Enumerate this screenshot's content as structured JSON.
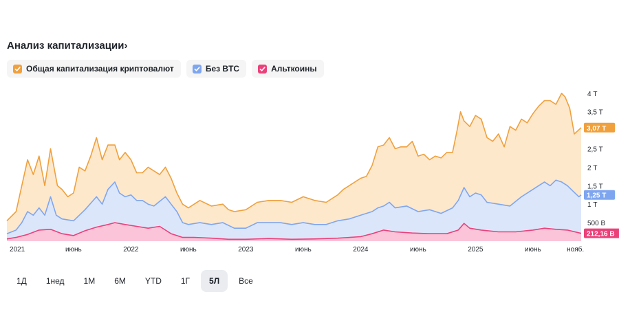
{
  "header": {
    "title": "Анализ капитализации›"
  },
  "legend": [
    {
      "label": "Общая капитализация криптовалют",
      "color": "#f0a03c",
      "icon": "check-icon"
    },
    {
      "label": "Без BTC",
      "color": "#7ea6f0",
      "icon": "check-icon"
    },
    {
      "label": "Альткоины",
      "color": "#ec407a",
      "icon": "check-icon"
    }
  ],
  "time_ranges": [
    "1Д",
    "1нед",
    "1М",
    "6М",
    "YTD",
    "1Г",
    "5Л",
    "Все"
  ],
  "active_range": "5Л",
  "chart_data": {
    "type": "area",
    "x_tick_labels": [
      "2021",
      "июнь",
      "2022",
      "июнь",
      "2023",
      "июнь",
      "2024",
      "июнь",
      "2025",
      "июнь",
      "нояб."
    ],
    "y_tick_labels": [
      "500 В",
      "1 Т",
      "1,5 Т",
      "2 Т",
      "2,5 Т",
      "3,5 Т",
      "4 Т"
    ],
    "y_ticks": [
      0.5,
      1,
      1.5,
      2,
      2.5,
      3.5,
      4
    ],
    "ylim": [
      0,
      4.2
    ],
    "xlim": [
      2020.92,
      2025.92
    ],
    "series": [
      {
        "name": "Общая капитализация криптовалют",
        "color": "#f0a03c",
        "fill": "#fde8cc",
        "last_label": "3,07 Т",
        "last_value": 3.07,
        "x": [
          2020.92,
          2021.0,
          2021.05,
          2021.1,
          2021.15,
          2021.2,
          2021.25,
          2021.3,
          2021.33,
          2021.36,
          2021.4,
          2021.45,
          2021.5,
          2021.55,
          2021.6,
          2021.65,
          2021.7,
          2021.75,
          2021.8,
          2021.86,
          2021.9,
          2021.95,
          2022.0,
          2022.05,
          2022.1,
          2022.15,
          2022.2,
          2022.25,
          2022.3,
          2022.35,
          2022.4,
          2022.45,
          2022.5,
          2022.6,
          2022.7,
          2022.8,
          2022.85,
          2022.9,
          2023.0,
          2023.1,
          2023.2,
          2023.3,
          2023.4,
          2023.5,
          2023.6,
          2023.7,
          2023.8,
          2023.85,
          2023.9,
          2024.0,
          2024.05,
          2024.1,
          2024.15,
          2024.2,
          2024.25,
          2024.3,
          2024.35,
          2024.4,
          2024.45,
          2024.5,
          2024.55,
          2024.6,
          2024.65,
          2024.7,
          2024.75,
          2024.8,
          2024.84,
          2024.87,
          2024.9,
          2024.95,
          2025.0,
          2025.05,
          2025.1,
          2025.15,
          2025.2,
          2025.25,
          2025.3,
          2025.35,
          2025.4,
          2025.45,
          2025.5,
          2025.55,
          2025.6,
          2025.65,
          2025.7,
          2025.75,
          2025.78,
          2025.82,
          2025.86,
          2025.92
        ],
        "values": [
          0.55,
          0.8,
          1.5,
          2.2,
          1.8,
          2.3,
          1.5,
          2.5,
          2.0,
          1.5,
          1.4,
          1.2,
          1.3,
          2.0,
          1.9,
          2.3,
          2.8,
          2.2,
          2.6,
          2.6,
          2.2,
          2.4,
          2.2,
          1.85,
          1.85,
          2.0,
          1.9,
          1.8,
          2.0,
          1.7,
          1.3,
          1.0,
          0.9,
          1.1,
          0.95,
          1.0,
          0.85,
          0.8,
          0.85,
          1.05,
          1.1,
          1.1,
          1.05,
          1.2,
          1.1,
          1.05,
          1.25,
          1.4,
          1.5,
          1.7,
          1.75,
          2.05,
          2.55,
          2.6,
          2.8,
          2.5,
          2.55,
          2.55,
          2.7,
          2.3,
          2.35,
          2.2,
          2.3,
          2.25,
          2.4,
          2.4,
          3.0,
          3.5,
          3.25,
          3.1,
          3.4,
          3.3,
          2.8,
          2.7,
          2.9,
          2.55,
          3.1,
          3.0,
          3.3,
          3.2,
          3.45,
          3.65,
          3.8,
          3.8,
          3.7,
          4.0,
          3.9,
          3.6,
          2.9,
          3.07
        ]
      },
      {
        "name": "Без BTC",
        "color": "#7ea6f0",
        "fill": "#dce6fb",
        "last_label": "1,25 Т",
        "last_value": 1.25,
        "x": [
          2020.92,
          2021.0,
          2021.05,
          2021.1,
          2021.15,
          2021.2,
          2021.25,
          2021.3,
          2021.35,
          2021.4,
          2021.5,
          2021.6,
          2021.7,
          2021.75,
          2021.8,
          2021.86,
          2021.9,
          2021.95,
          2022.0,
          2022.05,
          2022.1,
          2022.15,
          2022.2,
          2022.3,
          2022.35,
          2022.4,
          2022.45,
          2022.5,
          2022.6,
          2022.7,
          2022.8,
          2022.9,
          2023.0,
          2023.1,
          2023.2,
          2023.3,
          2023.4,
          2023.5,
          2023.6,
          2023.7,
          2023.8,
          2023.9,
          2024.0,
          2024.1,
          2024.15,
          2024.2,
          2024.25,
          2024.3,
          2024.4,
          2024.5,
          2024.6,
          2024.7,
          2024.8,
          2024.85,
          2024.9,
          2024.95,
          2025.0,
          2025.05,
          2025.1,
          2025.2,
          2025.3,
          2025.4,
          2025.5,
          2025.55,
          2025.6,
          2025.65,
          2025.7,
          2025.75,
          2025.8,
          2025.85,
          2025.9,
          2025.92
        ],
        "values": [
          0.2,
          0.3,
          0.5,
          0.8,
          0.7,
          0.9,
          0.7,
          1.2,
          0.7,
          0.6,
          0.55,
          0.85,
          1.2,
          1.0,
          1.4,
          1.6,
          1.3,
          1.2,
          1.25,
          1.1,
          1.1,
          1.0,
          0.95,
          1.2,
          1.0,
          0.8,
          0.5,
          0.45,
          0.5,
          0.45,
          0.5,
          0.35,
          0.35,
          0.5,
          0.5,
          0.5,
          0.45,
          0.5,
          0.45,
          0.45,
          0.55,
          0.6,
          0.7,
          0.8,
          0.9,
          0.95,
          1.05,
          0.9,
          0.95,
          0.8,
          0.85,
          0.75,
          0.9,
          1.1,
          1.45,
          1.2,
          1.3,
          1.25,
          1.05,
          1.0,
          0.95,
          1.2,
          1.4,
          1.5,
          1.6,
          1.5,
          1.65,
          1.6,
          1.5,
          1.35,
          1.2,
          1.25
        ]
      },
      {
        "name": "Альткоины",
        "color": "#ec407a",
        "fill": "#fbc4d8",
        "last_label": "212,16 В",
        "last_value": 0.21216,
        "x": [
          2020.92,
          2021.0,
          2021.1,
          2021.2,
          2021.3,
          2021.4,
          2021.5,
          2021.6,
          2021.7,
          2021.8,
          2021.86,
          2021.95,
          2022.05,
          2022.15,
          2022.25,
          2022.35,
          2022.45,
          2022.55,
          2022.7,
          2022.85,
          2023.0,
          2023.2,
          2023.4,
          2023.6,
          2023.8,
          2024.0,
          2024.1,
          2024.2,
          2024.3,
          2024.45,
          2024.6,
          2024.75,
          2024.85,
          2024.9,
          2024.95,
          2025.05,
          2025.2,
          2025.35,
          2025.5,
          2025.6,
          2025.7,
          2025.8,
          2025.92
        ],
        "values": [
          0.06,
          0.1,
          0.18,
          0.3,
          0.32,
          0.2,
          0.15,
          0.28,
          0.38,
          0.45,
          0.5,
          0.45,
          0.4,
          0.35,
          0.4,
          0.2,
          0.1,
          0.1,
          0.08,
          0.05,
          0.05,
          0.07,
          0.05,
          0.06,
          0.08,
          0.12,
          0.2,
          0.3,
          0.25,
          0.22,
          0.2,
          0.2,
          0.3,
          0.48,
          0.35,
          0.3,
          0.25,
          0.25,
          0.3,
          0.35,
          0.32,
          0.3,
          0.21
        ]
      }
    ],
    "grid": false,
    "legend_position": "top-left"
  }
}
